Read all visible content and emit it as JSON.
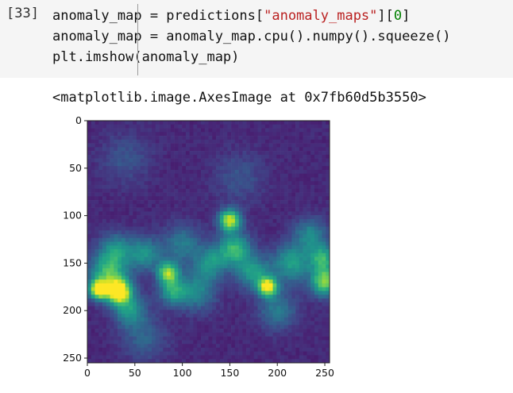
{
  "cell": {
    "prompt": "[33]",
    "code_lines": [
      [
        {
          "t": "anomaly_map = predictions["
        },
        {
          "t": "\"anomaly_maps\"",
          "c": "str"
        },
        {
          "t": "]["
        },
        {
          "t": "0",
          "c": "num"
        },
        {
          "t": "]"
        }
      ],
      [
        {
          "t": "anomaly_map = anomaly_map.cpu().numpy().squeeze()"
        }
      ],
      [
        {
          "t": "plt.imshow(anomaly_map)"
        }
      ]
    ]
  },
  "output": {
    "text": "<matplotlib.image.AxesImage at 0x7fb60d5b3550>"
  },
  "chart_data": {
    "type": "heatmap",
    "colormap": "viridis",
    "xlim": [
      0,
      255
    ],
    "ylim": [
      255,
      0
    ],
    "x_ticks": [
      "0",
      "50",
      "100",
      "150",
      "200",
      "250"
    ],
    "y_ticks": [
      "0",
      "50",
      "100",
      "150",
      "200",
      "250"
    ],
    "grid": false,
    "background_value": 0.08,
    "hotspots": [
      {
        "x": 12,
        "y": 178,
        "intensity": 0.9,
        "spread": 7
      },
      {
        "x": 33,
        "y": 180,
        "intensity": 1.0,
        "spread": 9
      },
      {
        "x": 22,
        "y": 160,
        "intensity": 0.55,
        "spread": 14
      },
      {
        "x": 45,
        "y": 200,
        "intensity": 0.4,
        "spread": 12
      },
      {
        "x": 85,
        "y": 160,
        "intensity": 0.7,
        "spread": 8
      },
      {
        "x": 90,
        "y": 180,
        "intensity": 0.45,
        "spread": 10
      },
      {
        "x": 60,
        "y": 140,
        "intensity": 0.4,
        "spread": 12
      },
      {
        "x": 30,
        "y": 135,
        "intensity": 0.35,
        "spread": 12
      },
      {
        "x": 150,
        "y": 105,
        "intensity": 0.8,
        "spread": 8
      },
      {
        "x": 155,
        "y": 135,
        "intensity": 0.55,
        "spread": 12
      },
      {
        "x": 130,
        "y": 150,
        "intensity": 0.4,
        "spread": 12
      },
      {
        "x": 115,
        "y": 180,
        "intensity": 0.35,
        "spread": 14
      },
      {
        "x": 190,
        "y": 175,
        "intensity": 0.85,
        "spread": 7
      },
      {
        "x": 175,
        "y": 160,
        "intensity": 0.45,
        "spread": 12
      },
      {
        "x": 215,
        "y": 150,
        "intensity": 0.45,
        "spread": 14
      },
      {
        "x": 250,
        "y": 170,
        "intensity": 0.7,
        "spread": 10
      },
      {
        "x": 248,
        "y": 145,
        "intensity": 0.5,
        "spread": 10
      },
      {
        "x": 235,
        "y": 120,
        "intensity": 0.35,
        "spread": 12
      },
      {
        "x": 100,
        "y": 130,
        "intensity": 0.3,
        "spread": 14
      },
      {
        "x": 200,
        "y": 200,
        "intensity": 0.3,
        "spread": 14
      },
      {
        "x": 60,
        "y": 230,
        "intensity": 0.2,
        "spread": 16
      },
      {
        "x": 160,
        "y": 60,
        "intensity": 0.15,
        "spread": 18
      },
      {
        "x": 40,
        "y": 40,
        "intensity": 0.15,
        "spread": 18
      }
    ]
  }
}
